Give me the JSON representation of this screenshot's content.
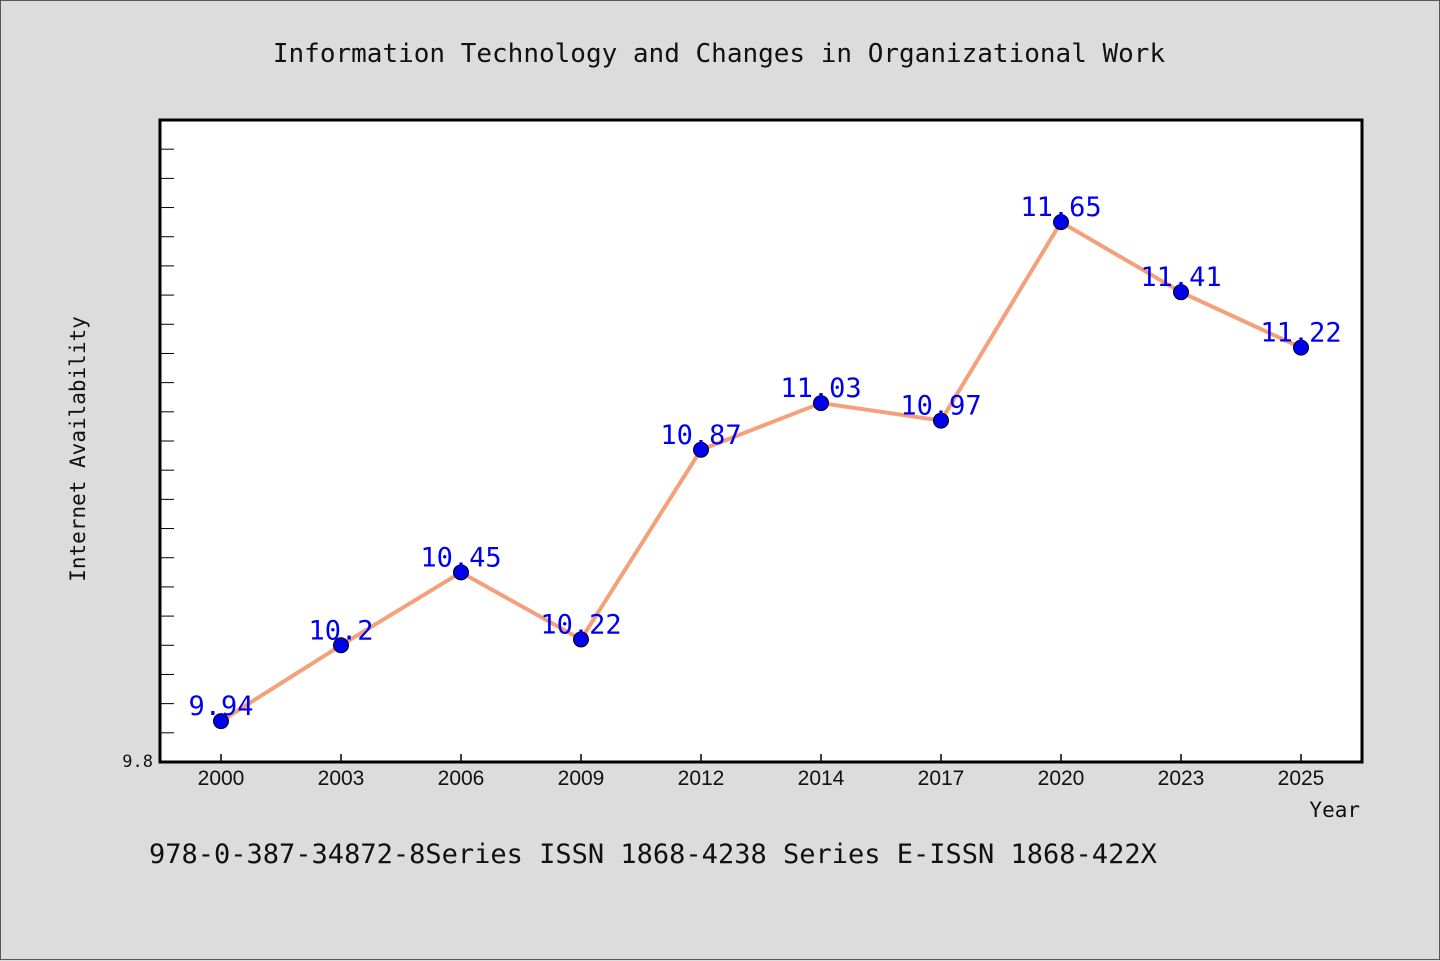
{
  "chart_data": {
    "type": "line",
    "title": "Information Technology and Changes in Organizational Work",
    "xlabel": "Year",
    "ylabel": "Internet Availability",
    "categories": [
      "2000",
      "2003",
      "2006",
      "2009",
      "2012",
      "2014",
      "2017",
      "2020",
      "2023",
      "2025"
    ],
    "series": [
      {
        "values": [
          9.94,
          10.2,
          10.45,
          10.22,
          10.87,
          11.03,
          10.97,
          11.65,
          11.41,
          11.22
        ],
        "data_labels": [
          "9.94",
          "10.2",
          "10.45",
          "10.22",
          "10.87",
          "11.03",
          "10.97",
          "11.65",
          "11.41",
          "11.22"
        ]
      }
    ],
    "ylim": [
      9.8,
      12.0
    ],
    "y_tick_labels": [
      "9.8"
    ],
    "grid": false,
    "line_color": "#f4a07a",
    "marker_color": "#0000ee",
    "label_color": "#0000ee"
  },
  "footer_text": "978-0-387-34872-8Series ISSN 1868-4238 Series E-ISSN 1868-422X",
  "colors": {
    "background": "#dcdcdc",
    "plot_background": "#ffffff"
  }
}
